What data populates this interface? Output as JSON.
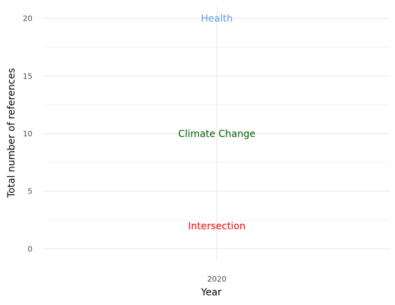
{
  "chart_data": {
    "type": "scatter",
    "xlabel": "Year",
    "ylabel": "Total number of references",
    "x_ticks": [
      "2020"
    ],
    "y_ticks": [
      0,
      5,
      10,
      15,
      20
    ],
    "ylim": [
      -1,
      21
    ],
    "grid": true,
    "series": [
      {
        "x": 2020,
        "y": 20,
        "label": "Health",
        "color": "#5b9bef"
      },
      {
        "x": 2020,
        "y": 10,
        "label": "Climate Change",
        "color": "#006400"
      },
      {
        "x": 2020,
        "y": 2,
        "label": "Intersection",
        "color": "#ff0000"
      }
    ]
  }
}
